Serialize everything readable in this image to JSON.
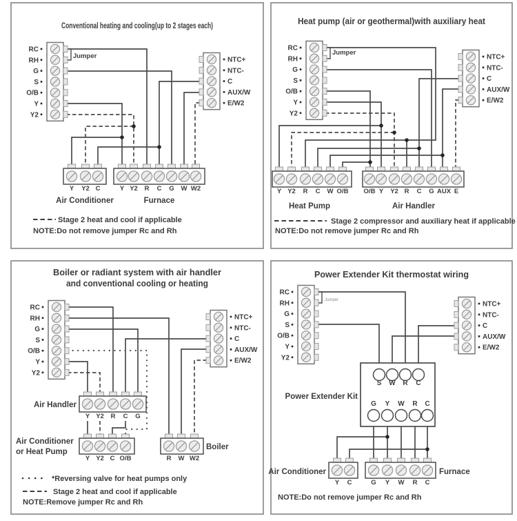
{
  "colors": {
    "wire": "#4a4a4a",
    "text": "#3c3c3c",
    "panel_border": "#919191",
    "strip_border": "#757575",
    "block_border": "#565656",
    "screw_fill": "#ececec",
    "screw_stroke": "#9c9c9c",
    "tab_fill": "#e6e6e6",
    "junction": "#262626",
    "background": "#ffffff",
    "small_jumper_text": "#8a8a8a"
  },
  "panels": [
    {
      "id": "conventional-heating-cooling",
      "title_lines": [
        "Conventional heating and cooling(up to 2 stages each)"
      ],
      "thermostat_terminals": [
        "RC",
        "RH",
        "G",
        "S",
        "O/B",
        "Y",
        "Y2"
      ],
      "sensor_terminals": [
        "NTC+",
        "NTC-",
        "C",
        "AUX/W",
        "E/W2"
      ],
      "jumper_label": "Jumper",
      "blocks": [
        {
          "name_lines": [
            "Air Conditioner"
          ],
          "terminals": [
            "Y",
            "Y2",
            "C"
          ]
        },
        {
          "name_lines": [
            "Furnace"
          ],
          "terminals": [
            "Y",
            "Y2",
            "R",
            "C",
            "G",
            "W",
            "W2"
          ]
        }
      ],
      "legend": [
        {
          "style": "dashed",
          "text": "Stage 2 heat and cool if applicable"
        }
      ],
      "note": "NOTE:Do not remove jumper Rc and Rh"
    },
    {
      "id": "heat-pump-auxiliary-heat",
      "title_lines": [
        "Heat pump (air or geothermal)with auxiliary heat"
      ],
      "thermostat_terminals": [
        "RC",
        "RH",
        "G",
        "S",
        "O/B",
        "Y",
        "Y2"
      ],
      "sensor_terminals": [
        "NTC+",
        "NTC-",
        "C",
        "AUX/W",
        "E/W2"
      ],
      "jumper_label": "Jumper",
      "blocks": [
        {
          "name_lines": [
            "Heat Pump"
          ],
          "terminals": [
            "Y",
            "Y2",
            "R",
            "C",
            "W",
            "O/B"
          ]
        },
        {
          "name_lines": [
            "Air Handler"
          ],
          "terminals": [
            "O/B",
            "Y",
            "Y2",
            "R",
            "C",
            "G",
            "AUX",
            "E"
          ]
        }
      ],
      "legend": [
        {
          "style": "dashed",
          "text": "Stage 2 compressor and auxiliary heat if applicable"
        }
      ],
      "note": "NOTE:Do not remove jumper Rc and Rh"
    },
    {
      "id": "boiler-radiant-system",
      "title_lines": [
        "Boiler or radiant system with air handler",
        "and conventional cooling or heating"
      ],
      "thermostat_terminals": [
        "RC",
        "RH",
        "G",
        "S",
        "O/B",
        "Y",
        "Y2"
      ],
      "sensor_terminals": [
        "NTC+",
        "NTC-",
        "C",
        "AUX/W",
        "E/W2"
      ],
      "jumper_label": null,
      "blocks": [
        {
          "name_lines": [
            "Air Handler"
          ],
          "terminals": [
            "Y",
            "Y2",
            "R",
            "C",
            "G"
          ]
        },
        {
          "name_lines": [
            "Air Conditioner",
            "or Heat Pump"
          ],
          "terminals": [
            "Y",
            "Y2",
            "C",
            "O/B"
          ]
        },
        {
          "name_lines": [
            "Boiler"
          ],
          "terminals": [
            "R",
            "W",
            "W2"
          ]
        }
      ],
      "legend": [
        {
          "style": "dotted",
          "text": "*Reversing valve for heat pumps only"
        },
        {
          "style": "dashed",
          "text": "Stage 2 heat and cool if applicable"
        }
      ],
      "note": "NOTE:Remove jumper Rc and Rh"
    },
    {
      "id": "power-extender-kit",
      "title_lines": [
        "Power Extender Kit thermostat wiring"
      ],
      "thermostat_terminals": [
        "RC",
        "RH",
        "G",
        "S",
        "O/B",
        "Y",
        "Y2"
      ],
      "sensor_terminals": [
        "NTC+",
        "NTC-",
        "C",
        "AUX/W",
        "E/W2"
      ],
      "jumper_label": "Jumper",
      "pek": {
        "name": "Power Extender Kit",
        "top_terminals": [
          "S",
          "W",
          "R",
          "C"
        ],
        "bottom_terminals": [
          "G",
          "Y",
          "W",
          "R",
          "C"
        ]
      },
      "blocks": [
        {
          "name_lines": [
            "Air Conditioner"
          ],
          "terminals": [
            "Y",
            "C"
          ]
        },
        {
          "name_lines": [
            "Furnace"
          ],
          "terminals": [
            "G",
            "Y",
            "W",
            "R",
            "C"
          ]
        }
      ],
      "legend": [],
      "note": "NOTE:Do not remove jumper Rc and Rh"
    }
  ]
}
